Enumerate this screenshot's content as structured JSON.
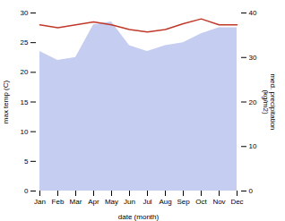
{
  "chart_data": {
    "type": "line",
    "categories": [
      "Jan",
      "Feb",
      "Mar",
      "Apr",
      "May",
      "Jun",
      "Jul",
      "Aug",
      "Sep",
      "Oct",
      "Nov",
      "Dec"
    ],
    "series": [
      {
        "type": "area",
        "color": "#c5cdf0",
        "values": [
          23.5,
          22.0,
          22.5,
          28.0,
          28.5,
          24.5,
          23.5,
          24.5,
          25.0,
          26.5,
          27.5,
          27.5
        ]
      },
      {
        "type": "line",
        "color": "#c0392b",
        "values": [
          28.0,
          27.5,
          28.0,
          28.5,
          28.0,
          27.2,
          26.8,
          27.2,
          28.2,
          29.0,
          28.0,
          28.0
        ]
      }
    ],
    "xlabel": "date (month)",
    "ylabel": "max temp (C)",
    "y2label": "med. precipitation\n(kg/m2)",
    "ylim": [
      0,
      30
    ],
    "yticks": [
      0,
      5,
      10,
      15,
      20,
      25,
      30
    ],
    "y2lim": [
      0,
      40
    ],
    "y2ticks": [
      0,
      10,
      20,
      30,
      40
    ]
  }
}
